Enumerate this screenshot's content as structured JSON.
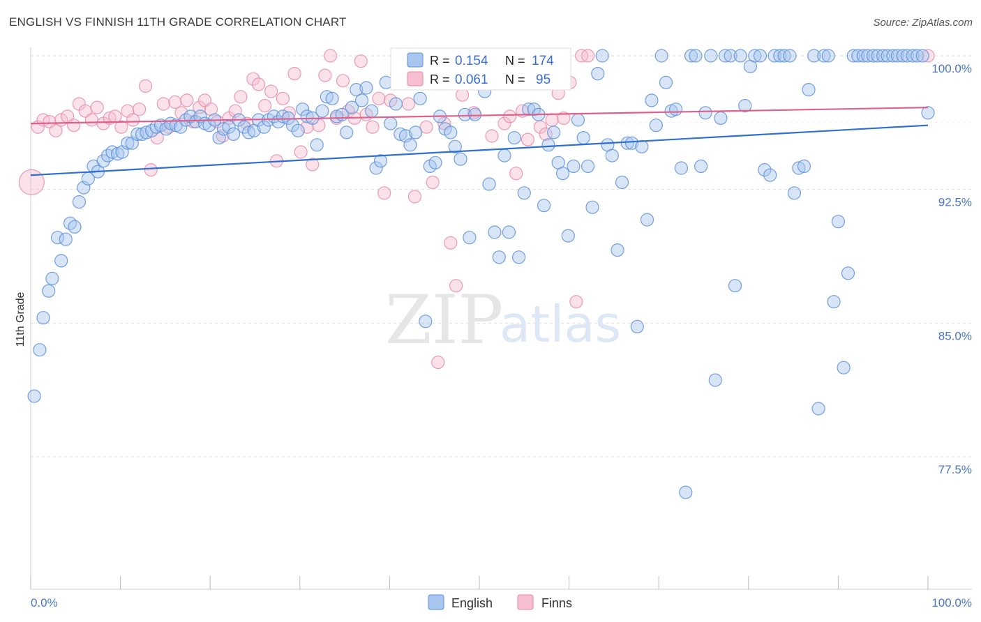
{
  "title": "ENGLISH VS FINNISH 11TH GRADE CORRELATION CHART",
  "source": "Source: ZipAtlas.com",
  "watermark": {
    "zip": "ZIP",
    "atlas": "atlas"
  },
  "chart_data": {
    "type": "scatter",
    "ylabel": "11th Grade",
    "xlim": [
      0,
      100
    ],
    "ylim": [
      70.5,
      101.3
    ],
    "x_tick_labels": [
      {
        "value": 0,
        "label": "0.0%"
      },
      {
        "value": 100,
        "label": "100.0%"
      }
    ],
    "y_ticks": [
      {
        "value": 100,
        "label": "100.0%"
      },
      {
        "value": 92.5,
        "label": "92.5%"
      },
      {
        "value": 85,
        "label": "85.0%"
      },
      {
        "value": 77.5,
        "label": "77.5%"
      }
    ],
    "x_minor_ticks": [
      0,
      10,
      20,
      30,
      40,
      50,
      60,
      70,
      80,
      90,
      100
    ],
    "grid": true,
    "legend_placement": "top-center",
    "legend_top": [
      {
        "series": "English",
        "r_label": "R =",
        "r_value": "0.154",
        "n_label": "N =",
        "n_value": "174"
      },
      {
        "series": "Finns",
        "r_label": "R =",
        "r_value": "0.061",
        "n_label": "N =",
        "n_value": "95"
      }
    ],
    "series": [
      {
        "name": "English",
        "color": "#5b8fdb",
        "fill": "#a9c6ee",
        "trend": {
          "x0": 0,
          "y0": 93.3,
          "x1": 100,
          "y1": 96.1
        },
        "points": [
          [
            0.4,
            80.9
          ],
          [
            1.0,
            83.5
          ],
          [
            1.4,
            85.3
          ],
          [
            2.0,
            86.8
          ],
          [
            2.4,
            87.5
          ],
          [
            3.0,
            89.8
          ],
          [
            3.4,
            88.5
          ],
          [
            3.9,
            89.7
          ],
          [
            4.4,
            90.6
          ],
          [
            4.9,
            90.4
          ],
          [
            5.4,
            91.8
          ],
          [
            5.9,
            92.6
          ],
          [
            6.4,
            93.1
          ],
          [
            7.0,
            93.8
          ],
          [
            7.5,
            93.5
          ],
          [
            8.1,
            94.1
          ],
          [
            8.6,
            94.4
          ],
          [
            9.1,
            94.6
          ],
          [
            9.7,
            94.5
          ],
          [
            10.2,
            94.6
          ],
          [
            10.8,
            95.1
          ],
          [
            11.3,
            95.1
          ],
          [
            11.9,
            95.6
          ],
          [
            12.4,
            95.6
          ],
          [
            12.9,
            95.7
          ],
          [
            13.5,
            95.8
          ],
          [
            14.0,
            96.0
          ],
          [
            14.5,
            96.1
          ],
          [
            15.1,
            95.9
          ],
          [
            15.6,
            96.2
          ],
          [
            16.2,
            96.1
          ],
          [
            16.7,
            96.0
          ],
          [
            17.3,
            96.4
          ],
          [
            17.8,
            96.6
          ],
          [
            18.4,
            96.3
          ],
          [
            18.9,
            96.6
          ],
          [
            19.4,
            96.2
          ],
          [
            19.9,
            96.1
          ],
          [
            20.5,
            96.4
          ],
          [
            21.0,
            95.4
          ],
          [
            21.5,
            95.9
          ],
          [
            22.1,
            96.0
          ],
          [
            22.6,
            95.6
          ],
          [
            23.2,
            96.4
          ],
          [
            23.8,
            96.0
          ],
          [
            24.3,
            95.7
          ],
          [
            24.9,
            95.8
          ],
          [
            25.4,
            96.4
          ],
          [
            26.0,
            96.0
          ],
          [
            26.5,
            96.4
          ],
          [
            27.1,
            96.6
          ],
          [
            27.6,
            96.3
          ],
          [
            28.1,
            96.6
          ],
          [
            28.7,
            96.5
          ],
          [
            29.2,
            96.1
          ],
          [
            29.8,
            95.8
          ],
          [
            30.3,
            97.0
          ],
          [
            30.8,
            96.6
          ],
          [
            31.4,
            96.5
          ],
          [
            31.9,
            95.0
          ],
          [
            32.5,
            96.9
          ],
          [
            33.0,
            97.7
          ],
          [
            33.6,
            97.6
          ],
          [
            34.1,
            96.6
          ],
          [
            34.7,
            96.7
          ],
          [
            35.2,
            95.7
          ],
          [
            35.8,
            97.1
          ],
          [
            36.3,
            98.1
          ],
          [
            36.9,
            97.5
          ],
          [
            37.4,
            98.2
          ],
          [
            38.0,
            96.9
          ],
          [
            38.5,
            93.7
          ],
          [
            39.0,
            94.1
          ],
          [
            39.6,
            98.5
          ],
          [
            40.1,
            96.2
          ],
          [
            40.7,
            97.3
          ],
          [
            41.2,
            95.6
          ],
          [
            41.8,
            95.5
          ],
          [
            42.3,
            95.0
          ],
          [
            42.9,
            95.7
          ],
          [
            43.4,
            97.6
          ],
          [
            44.0,
            85.1
          ],
          [
            44.5,
            93.8
          ],
          [
            45.1,
            94.0
          ],
          [
            45.6,
            96.6
          ],
          [
            46.2,
            95.9
          ],
          [
            46.8,
            95.7
          ],
          [
            47.3,
            94.9
          ],
          [
            47.9,
            94.2
          ],
          [
            48.4,
            96.7
          ],
          [
            48.9,
            89.8
          ],
          [
            49.5,
            96.7
          ],
          [
            50.0,
            99.5
          ],
          [
            50.6,
            98.0
          ],
          [
            51.1,
            92.8
          ],
          [
            51.7,
            90.1
          ],
          [
            52.2,
            88.7
          ],
          [
            52.8,
            94.4
          ],
          [
            53.3,
            90.1
          ],
          [
            53.9,
            95.4
          ],
          [
            54.4,
            88.7
          ],
          [
            55.0,
            92.3
          ],
          [
            55.5,
            97.0
          ],
          [
            56.1,
            97.0
          ],
          [
            56.6,
            96.7
          ],
          [
            57.2,
            91.6
          ],
          [
            57.7,
            95.0
          ],
          [
            58.3,
            95.7
          ],
          [
            58.8,
            94.0
          ],
          [
            59.3,
            93.4
          ],
          [
            59.9,
            89.9
          ],
          [
            60.5,
            93.8
          ],
          [
            61.0,
            96.4
          ],
          [
            61.6,
            95.4
          ],
          [
            62.1,
            93.8
          ],
          [
            62.6,
            91.5
          ],
          [
            63.2,
            99.0
          ],
          [
            63.7,
            100.0
          ],
          [
            64.3,
            95.0
          ],
          [
            64.8,
            94.4
          ],
          [
            65.4,
            89.1
          ],
          [
            65.9,
            92.9
          ],
          [
            66.5,
            95.1
          ],
          [
            67.0,
            95.1
          ],
          [
            67.6,
            84.8
          ],
          [
            68.1,
            94.9
          ],
          [
            68.7,
            90.8
          ],
          [
            69.2,
            97.5
          ],
          [
            69.7,
            96.1
          ],
          [
            70.3,
            100.0
          ],
          [
            70.8,
            98.5
          ],
          [
            71.4,
            96.9
          ],
          [
            71.9,
            97.0
          ],
          [
            72.5,
            93.7
          ],
          [
            73.0,
            75.5
          ],
          [
            73.6,
            100.0
          ],
          [
            74.1,
            100.0
          ],
          [
            74.7,
            93.8
          ],
          [
            75.2,
            96.8
          ],
          [
            75.8,
            100.0
          ],
          [
            76.3,
            81.8
          ],
          [
            76.9,
            96.5
          ],
          [
            77.4,
            100.0
          ],
          [
            78.0,
            100.0
          ],
          [
            78.5,
            87.1
          ],
          [
            79.1,
            100.0
          ],
          [
            79.6,
            97.2
          ],
          [
            80.2,
            99.4
          ],
          [
            80.7,
            100.0
          ],
          [
            81.3,
            100.0
          ],
          [
            81.8,
            93.6
          ],
          [
            82.4,
            93.3
          ],
          [
            82.9,
            100.0
          ],
          [
            83.5,
            100.0
          ],
          [
            84.0,
            100.0
          ],
          [
            84.6,
            100.0
          ],
          [
            85.1,
            92.3
          ],
          [
            85.6,
            93.7
          ],
          [
            86.2,
            93.8
          ],
          [
            86.7,
            98.1
          ],
          [
            87.3,
            100.0
          ],
          [
            87.8,
            80.2
          ],
          [
            88.4,
            100.0
          ],
          [
            88.9,
            100.0
          ],
          [
            89.5,
            86.2
          ],
          [
            90.0,
            90.7
          ],
          [
            90.6,
            82.5
          ],
          [
            91.1,
            87.8
          ],
          [
            91.7,
            100.0
          ],
          [
            92.2,
            100.0
          ],
          [
            92.8,
            100.0
          ],
          [
            93.3,
            100.0
          ],
          [
            93.9,
            100.0
          ],
          [
            94.4,
            100.0
          ],
          [
            95.0,
            100.0
          ],
          [
            95.5,
            100.0
          ],
          [
            96.1,
            100.0
          ],
          [
            96.6,
            100.0
          ],
          [
            97.2,
            100.0
          ],
          [
            97.7,
            100.0
          ],
          [
            98.3,
            100.0
          ],
          [
            98.8,
            100.0
          ],
          [
            99.4,
            100.0
          ],
          [
            100.0,
            96.8
          ]
        ]
      },
      {
        "name": "Finns",
        "color": "#e889a8",
        "fill": "#f6bfd1",
        "trend": {
          "x0": 0,
          "y0": 96.2,
          "x1": 100,
          "y1": 97.1
        },
        "points": [
          [
            0.1,
            92.9
          ],
          [
            0.8,
            96.0
          ],
          [
            1.4,
            96.4
          ],
          [
            2.1,
            96.3
          ],
          [
            2.8,
            95.8
          ],
          [
            3.4,
            96.4
          ],
          [
            4.1,
            96.6
          ],
          [
            4.8,
            96.1
          ],
          [
            5.4,
            97.3
          ],
          [
            6.1,
            96.9
          ],
          [
            6.8,
            96.4
          ],
          [
            7.4,
            97.1
          ],
          [
            8.1,
            96.2
          ],
          [
            8.8,
            96.5
          ],
          [
            9.4,
            96.6
          ],
          [
            10.1,
            96.0
          ],
          [
            10.8,
            96.9
          ],
          [
            11.4,
            96.4
          ],
          [
            12.1,
            97.0
          ],
          [
            12.8,
            98.3
          ],
          [
            13.4,
            93.6
          ],
          [
            14.1,
            95.4
          ],
          [
            14.8,
            97.3
          ],
          [
            15.4,
            96.0
          ],
          [
            16.1,
            97.4
          ],
          [
            16.8,
            96.8
          ],
          [
            17.4,
            97.5
          ],
          [
            18.1,
            96.3
          ],
          [
            18.8,
            97.1
          ],
          [
            19.4,
            97.5
          ],
          [
            20.1,
            97.0
          ],
          [
            20.8,
            96.3
          ],
          [
            21.4,
            95.5
          ],
          [
            22.1,
            96.5
          ],
          [
            22.8,
            96.9
          ],
          [
            23.4,
            97.7
          ],
          [
            24.1,
            96.2
          ],
          [
            24.8,
            98.7
          ],
          [
            25.4,
            98.4
          ],
          [
            26.1,
            97.2
          ],
          [
            26.8,
            98.0
          ],
          [
            27.4,
            94.1
          ],
          [
            28.1,
            97.6
          ],
          [
            28.8,
            96.8
          ],
          [
            29.4,
            99.0
          ],
          [
            30.1,
            94.6
          ],
          [
            30.8,
            96.0
          ],
          [
            31.4,
            93.9
          ],
          [
            32.1,
            96.1
          ],
          [
            32.8,
            98.9
          ],
          [
            33.4,
            100.0
          ],
          [
            34.1,
            96.5
          ],
          [
            34.8,
            98.6
          ],
          [
            35.4,
            96.9
          ],
          [
            36.1,
            96.5
          ],
          [
            36.8,
            99.7
          ],
          [
            37.4,
            96.7
          ],
          [
            38.1,
            96.0
          ],
          [
            38.8,
            97.6
          ],
          [
            39.4,
            92.3
          ],
          [
            40.1,
            97.5
          ],
          [
            40.8,
            99.0
          ],
          [
            41.4,
            100.0
          ],
          [
            42.1,
            97.3
          ],
          [
            42.8,
            92.1
          ],
          [
            43.4,
            98.8
          ],
          [
            44.1,
            96.0
          ],
          [
            44.8,
            92.9
          ],
          [
            45.4,
            82.8
          ],
          [
            46.1,
            96.2
          ],
          [
            46.8,
            89.5
          ],
          [
            47.4,
            87.1
          ],
          [
            48.1,
            97.8
          ],
          [
            48.8,
            98.5
          ],
          [
            49.4,
            96.8
          ],
          [
            50.1,
            99.0
          ],
          [
            50.8,
            100.0
          ],
          [
            51.4,
            95.5
          ],
          [
            52.1,
            100.0
          ],
          [
            52.8,
            96.2
          ],
          [
            53.4,
            96.6
          ],
          [
            54.1,
            93.4
          ],
          [
            54.8,
            96.9
          ],
          [
            55.4,
            95.3
          ],
          [
            56.1,
            98.7
          ],
          [
            56.8,
            96.0
          ],
          [
            57.4,
            95.6
          ],
          [
            58.1,
            96.4
          ],
          [
            58.8,
            97.9
          ],
          [
            59.4,
            96.5
          ],
          [
            60.1,
            98.5
          ],
          [
            60.8,
            86.2
          ],
          [
            61.4,
            100.0
          ],
          [
            62.1,
            100.0
          ],
          [
            100.0,
            100.0
          ]
        ]
      }
    ]
  }
}
